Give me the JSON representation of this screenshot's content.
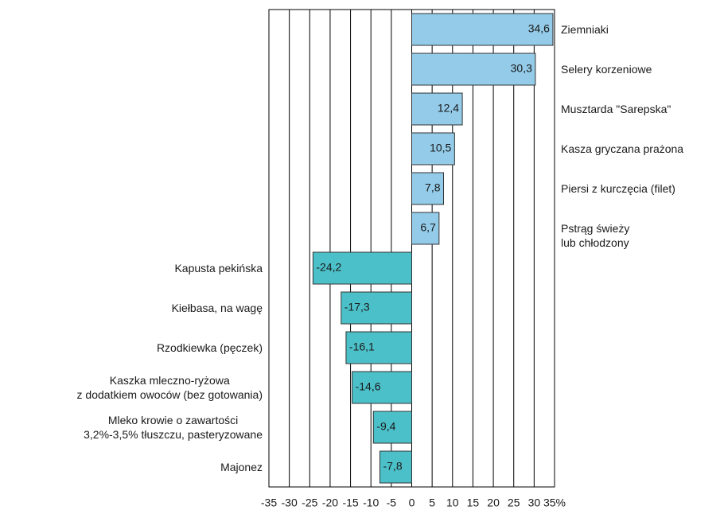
{
  "chart_data": {
    "type": "hbar",
    "categories": [
      "Ziemniaki",
      "Selery korzeniowe",
      "Musztarda \"Sarepska\"",
      "Kasza gryczana prażona",
      "Piersi z kurczęcia (filet)",
      "Pstrąg świeży\nlub chłodzony",
      "Kapusta pekińska",
      "Kiełbasa, na wagę",
      "Rzodkiewka (pęczek)",
      "Kaszka mleczno-ryżowa\nz dodatkiem owoców (bez gotowania)",
      "Mleko krowie o zawartości\n3,2%-3,5% tłuszczu, pasteryzowane",
      "Majonez"
    ],
    "values": [
      34.6,
      30.3,
      12.4,
      10.5,
      7.8,
      6.7,
      -24.2,
      -17.3,
      -16.1,
      -14.6,
      -9.4,
      -7.8
    ],
    "value_labels": [
      "34,6",
      "30,3",
      "12,4",
      "10,5",
      "7,8",
      "6,7",
      "-24,2",
      "-17,3",
      "-16,1",
      "-14,6",
      "-9,4",
      "-7,8"
    ],
    "colors": [
      "#93cbe8",
      "#93cbe8",
      "#93cbe8",
      "#93cbe8",
      "#93cbe8",
      "#93cbe8",
      "#4cc0c9",
      "#4cc0c9",
      "#4cc0c9",
      "#4cc0c9",
      "#4cc0c9",
      "#4cc0c9"
    ],
    "xlim": [
      -35,
      35
    ],
    "xticks": [
      -35,
      -30,
      -25,
      -20,
      -15,
      -10,
      -5,
      0,
      5,
      10,
      15,
      20,
      25,
      30,
      {
        "value": 35,
        "label": "35%"
      }
    ],
    "grid": true
  }
}
